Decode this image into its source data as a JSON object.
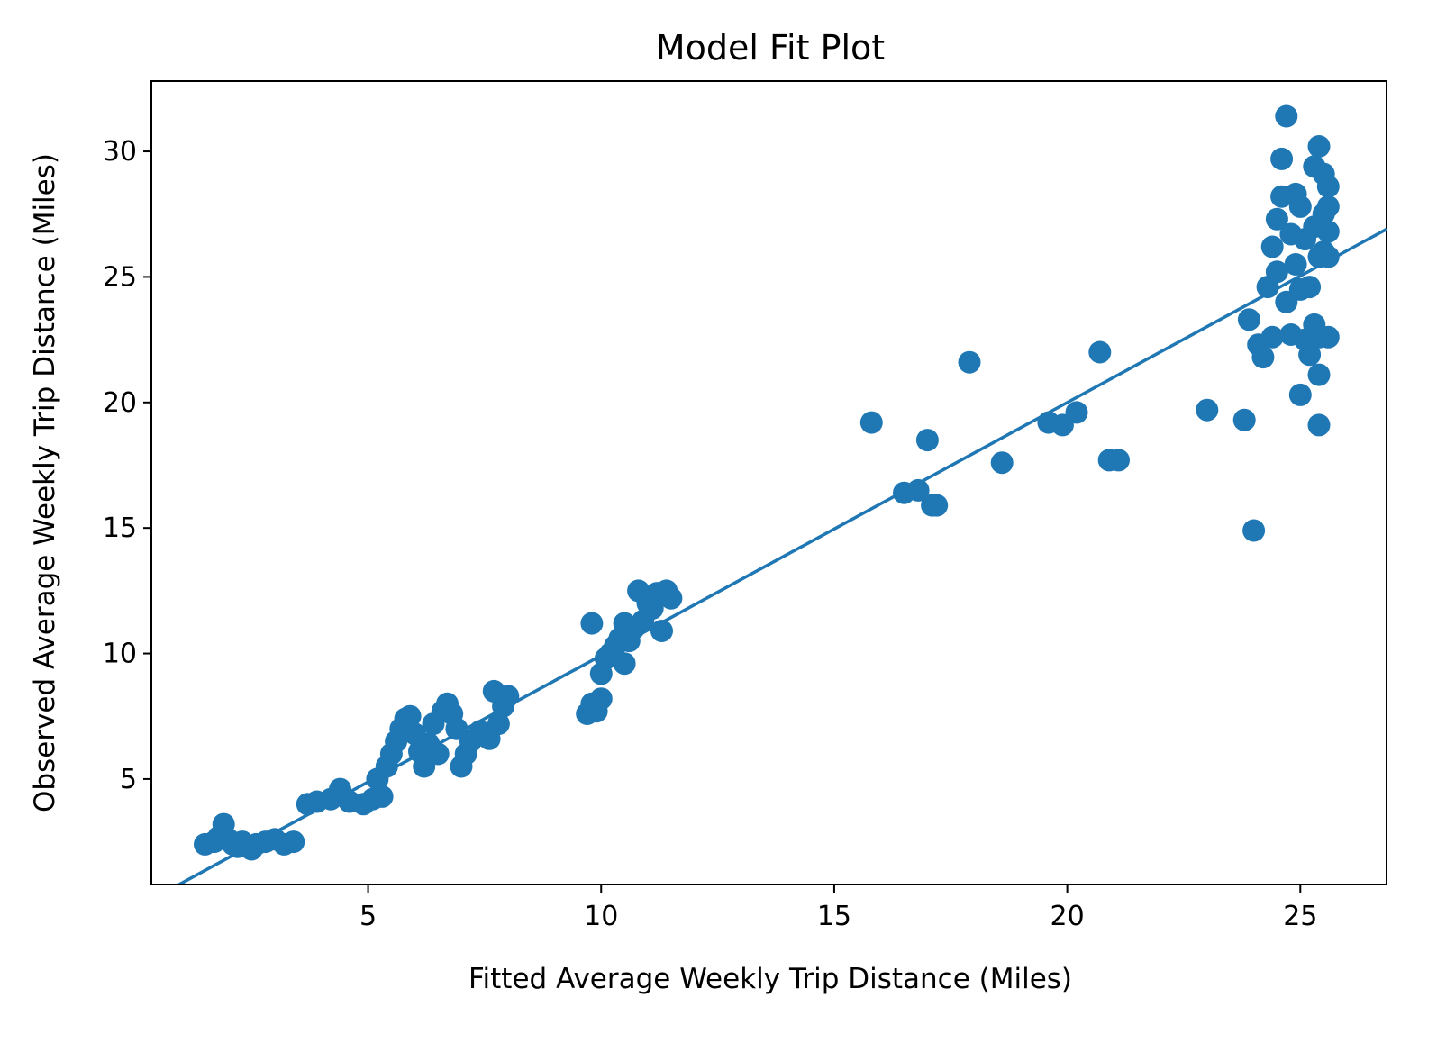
{
  "chart_data": {
    "type": "scatter",
    "title": "Model Fit Plot",
    "xlabel": "Fitted Average Weekly Trip Distance (Miles)",
    "ylabel": "Observed Average Weekly Trip Distance (Miles)",
    "xlim": [
      0.35,
      26.85
    ],
    "ylim": [
      0.8,
      32.8
    ],
    "xticks": [
      5,
      10,
      15,
      20,
      25
    ],
    "yticks": [
      5,
      10,
      15,
      20,
      25,
      30
    ],
    "grid": false,
    "legend": "none",
    "colors": {
      "points": "#1f77b4",
      "fit_line": "#1f77b4"
    },
    "fit_line": {
      "x": [
        0.35,
        26.85
      ],
      "y": [
        0.2,
        26.9
      ]
    },
    "series": [
      {
        "points": [
          [
            1.5,
            2.4
          ],
          [
            1.7,
            2.5
          ],
          [
            1.8,
            2.7
          ],
          [
            1.9,
            3.2
          ],
          [
            2.0,
            2.6
          ],
          [
            2.1,
            2.4
          ],
          [
            2.2,
            2.3
          ],
          [
            2.3,
            2.5
          ],
          [
            2.5,
            2.2
          ],
          [
            2.6,
            2.4
          ],
          [
            2.8,
            2.5
          ],
          [
            3.0,
            2.6
          ],
          [
            3.2,
            2.4
          ],
          [
            3.4,
            2.5
          ],
          [
            3.7,
            4.0
          ],
          [
            3.9,
            4.1
          ],
          [
            4.2,
            4.2
          ],
          [
            4.4,
            4.6
          ],
          [
            4.6,
            4.1
          ],
          [
            4.9,
            4.0
          ],
          [
            5.1,
            4.2
          ],
          [
            5.3,
            4.3
          ],
          [
            5.2,
            5.0
          ],
          [
            5.4,
            5.5
          ],
          [
            5.5,
            6.0
          ],
          [
            5.6,
            6.5
          ],
          [
            5.7,
            7.0
          ],
          [
            5.8,
            7.4
          ],
          [
            5.9,
            7.5
          ],
          [
            6.0,
            6.8
          ],
          [
            6.1,
            6.1
          ],
          [
            6.2,
            5.5
          ],
          [
            6.3,
            6.4
          ],
          [
            6.4,
            7.2
          ],
          [
            6.5,
            6.0
          ],
          [
            6.6,
            7.7
          ],
          [
            6.7,
            8.0
          ],
          [
            6.8,
            7.6
          ],
          [
            6.9,
            7.0
          ],
          [
            7.0,
            5.5
          ],
          [
            7.1,
            6.0
          ],
          [
            7.2,
            6.5
          ],
          [
            7.4,
            6.9
          ],
          [
            7.6,
            6.6
          ],
          [
            7.7,
            8.5
          ],
          [
            7.8,
            7.2
          ],
          [
            7.9,
            7.9
          ],
          [
            8.0,
            8.3
          ],
          [
            9.7,
            7.6
          ],
          [
            9.8,
            8.0
          ],
          [
            9.9,
            7.7
          ],
          [
            9.8,
            11.2
          ],
          [
            10.0,
            8.2
          ],
          [
            10.0,
            9.2
          ],
          [
            10.1,
            9.8
          ],
          [
            10.2,
            10.0
          ],
          [
            10.3,
            10.3
          ],
          [
            10.4,
            10.6
          ],
          [
            10.5,
            11.2
          ],
          [
            10.5,
            9.6
          ],
          [
            10.6,
            10.5
          ],
          [
            10.7,
            11.0
          ],
          [
            10.8,
            12.5
          ],
          [
            10.9,
            11.3
          ],
          [
            11.0,
            12.0
          ],
          [
            11.1,
            11.8
          ],
          [
            11.2,
            12.4
          ],
          [
            11.3,
            10.9
          ],
          [
            11.4,
            12.5
          ],
          [
            11.5,
            12.2
          ],
          [
            15.8,
            19.2
          ],
          [
            16.5,
            16.4
          ],
          [
            16.8,
            16.5
          ],
          [
            17.0,
            18.5
          ],
          [
            17.1,
            15.9
          ],
          [
            17.2,
            15.9
          ],
          [
            17.9,
            21.6
          ],
          [
            18.6,
            17.6
          ],
          [
            19.6,
            19.2
          ],
          [
            19.9,
            19.1
          ],
          [
            20.2,
            19.6
          ],
          [
            20.7,
            22.0
          ],
          [
            20.9,
            17.7
          ],
          [
            21.1,
            17.7
          ],
          [
            23.0,
            19.7
          ],
          [
            23.8,
            19.3
          ],
          [
            24.0,
            14.9
          ],
          [
            23.9,
            23.3
          ],
          [
            24.1,
            22.3
          ],
          [
            24.2,
            21.8
          ],
          [
            24.3,
            24.6
          ],
          [
            24.4,
            22.6
          ],
          [
            24.4,
            26.2
          ],
          [
            24.5,
            27.3
          ],
          [
            24.5,
            25.2
          ],
          [
            24.6,
            28.2
          ],
          [
            24.6,
            29.7
          ],
          [
            24.7,
            31.4
          ],
          [
            24.7,
            24.0
          ],
          [
            24.8,
            26.7
          ],
          [
            24.8,
            22.7
          ],
          [
            24.9,
            28.3
          ],
          [
            24.9,
            25.5
          ],
          [
            25.0,
            27.8
          ],
          [
            25.0,
            24.5
          ],
          [
            25.0,
            20.3
          ],
          [
            25.1,
            26.5
          ],
          [
            25.1,
            22.5
          ],
          [
            25.2,
            24.6
          ],
          [
            25.2,
            21.9
          ],
          [
            25.3,
            29.4
          ],
          [
            25.3,
            23.1
          ],
          [
            25.3,
            27.0
          ],
          [
            25.4,
            30.2
          ],
          [
            25.4,
            25.8
          ],
          [
            25.4,
            22.6
          ],
          [
            25.4,
            21.1
          ],
          [
            25.4,
            19.1
          ],
          [
            25.5,
            29.1
          ],
          [
            25.5,
            27.5
          ],
          [
            25.5,
            26.0
          ],
          [
            25.6,
            28.6
          ],
          [
            25.6,
            27.8
          ],
          [
            25.6,
            26.8
          ],
          [
            25.6,
            25.8
          ],
          [
            25.6,
            22.6
          ]
        ]
      }
    ]
  }
}
